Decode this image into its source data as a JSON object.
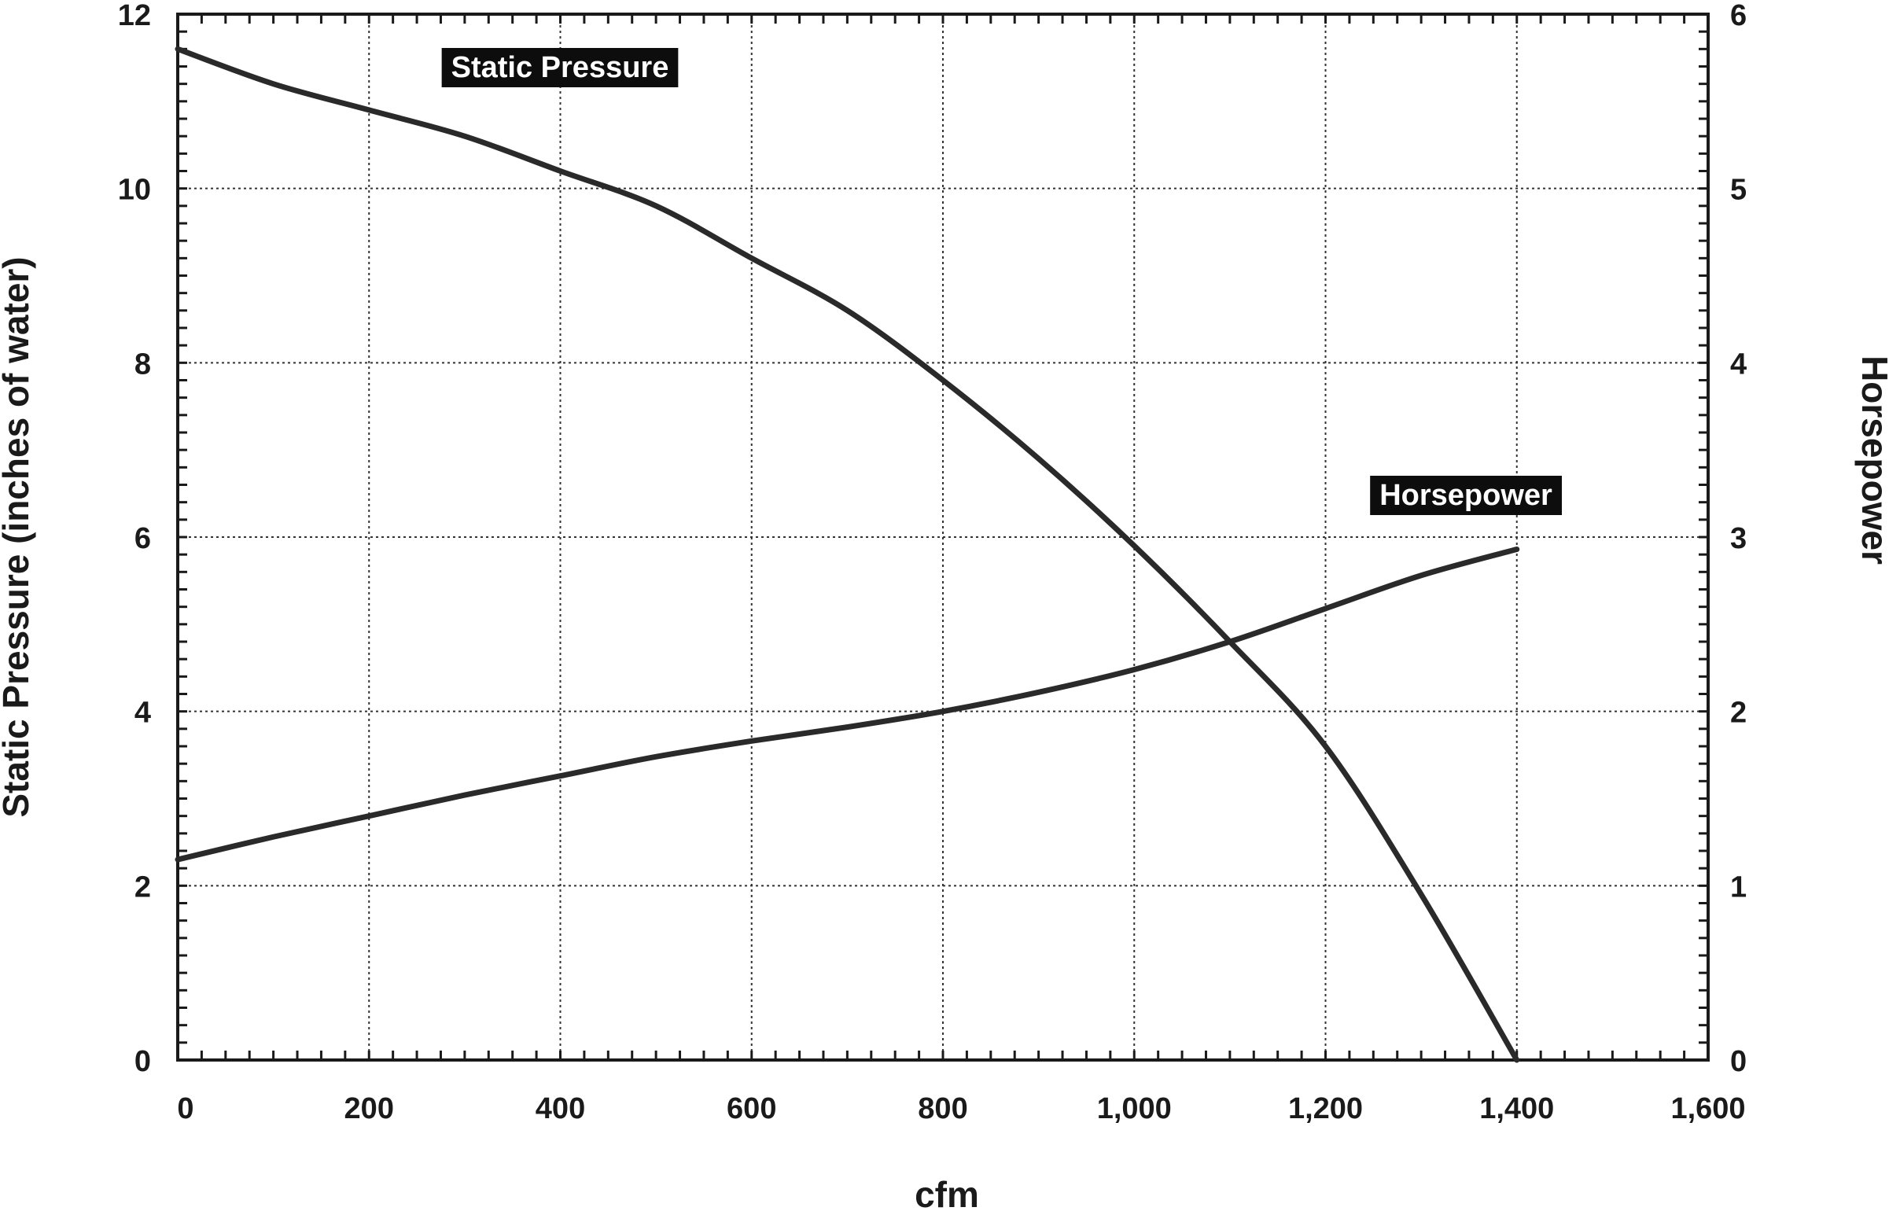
{
  "chart_data": {
    "type": "line",
    "xlabel": "cfm",
    "ylabel": "Static Pressure (inches of water)",
    "y2label": "Horsepower",
    "xlim": [
      0,
      1600
    ],
    "ylim": [
      0,
      12
    ],
    "y2lim": [
      0,
      6
    ],
    "grid": true,
    "x_ticks": [
      "0",
      "200",
      "400",
      "600",
      "800",
      "1,000",
      "1,200",
      "1,400",
      "1,600"
    ],
    "y_ticks": [
      "0",
      "2",
      "4",
      "6",
      "8",
      "10",
      "12"
    ],
    "y2_ticks": [
      "0",
      "1",
      "2",
      "3",
      "4",
      "5",
      "6"
    ],
    "series": [
      {
        "name": "Static Pressure",
        "axis": "left",
        "x": [
          0,
          100,
          200,
          300,
          400,
          500,
          600,
          700,
          800,
          900,
          1000,
          1100,
          1200,
          1300,
          1400
        ],
        "y": [
          11.6,
          11.2,
          10.9,
          10.6,
          10.2,
          9.8,
          9.2,
          8.6,
          7.8,
          6.9,
          5.9,
          4.8,
          3.6,
          1.9,
          0.0
        ]
      },
      {
        "name": "Horsepower",
        "axis": "right",
        "x": [
          0,
          100,
          200,
          300,
          400,
          500,
          600,
          700,
          800,
          900,
          1000,
          1100,
          1200,
          1300,
          1400
        ],
        "y": [
          1.15,
          1.28,
          1.4,
          1.52,
          1.63,
          1.74,
          1.83,
          1.91,
          2.0,
          2.11,
          2.24,
          2.4,
          2.59,
          2.78,
          2.93
        ]
      }
    ]
  }
}
